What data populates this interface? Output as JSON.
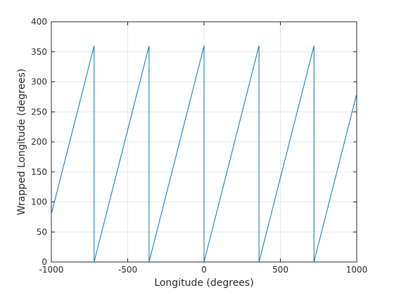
{
  "chart_data": {
    "type": "line",
    "xlabel": "Longitude (degrees)",
    "ylabel": "Wrapped Longitude (degrees)",
    "x": [
      -1000,
      -720,
      -720,
      -360,
      -360,
      0,
      0,
      360,
      360,
      720,
      720,
      1000
    ],
    "series": [
      {
        "color": "#0072bd",
        "values": [
          80,
          360,
          0,
          360,
          0,
          360,
          0,
          360,
          0,
          360,
          0,
          280
        ]
      }
    ],
    "xlim": [
      -1000,
      1000
    ],
    "xticks": [
      -1000,
      -500,
      0,
      500,
      1000
    ],
    "ylim": [
      0,
      400
    ],
    "yticks": [
      0,
      50,
      100,
      150,
      200,
      250,
      300,
      350,
      400
    ],
    "grid": true
  }
}
